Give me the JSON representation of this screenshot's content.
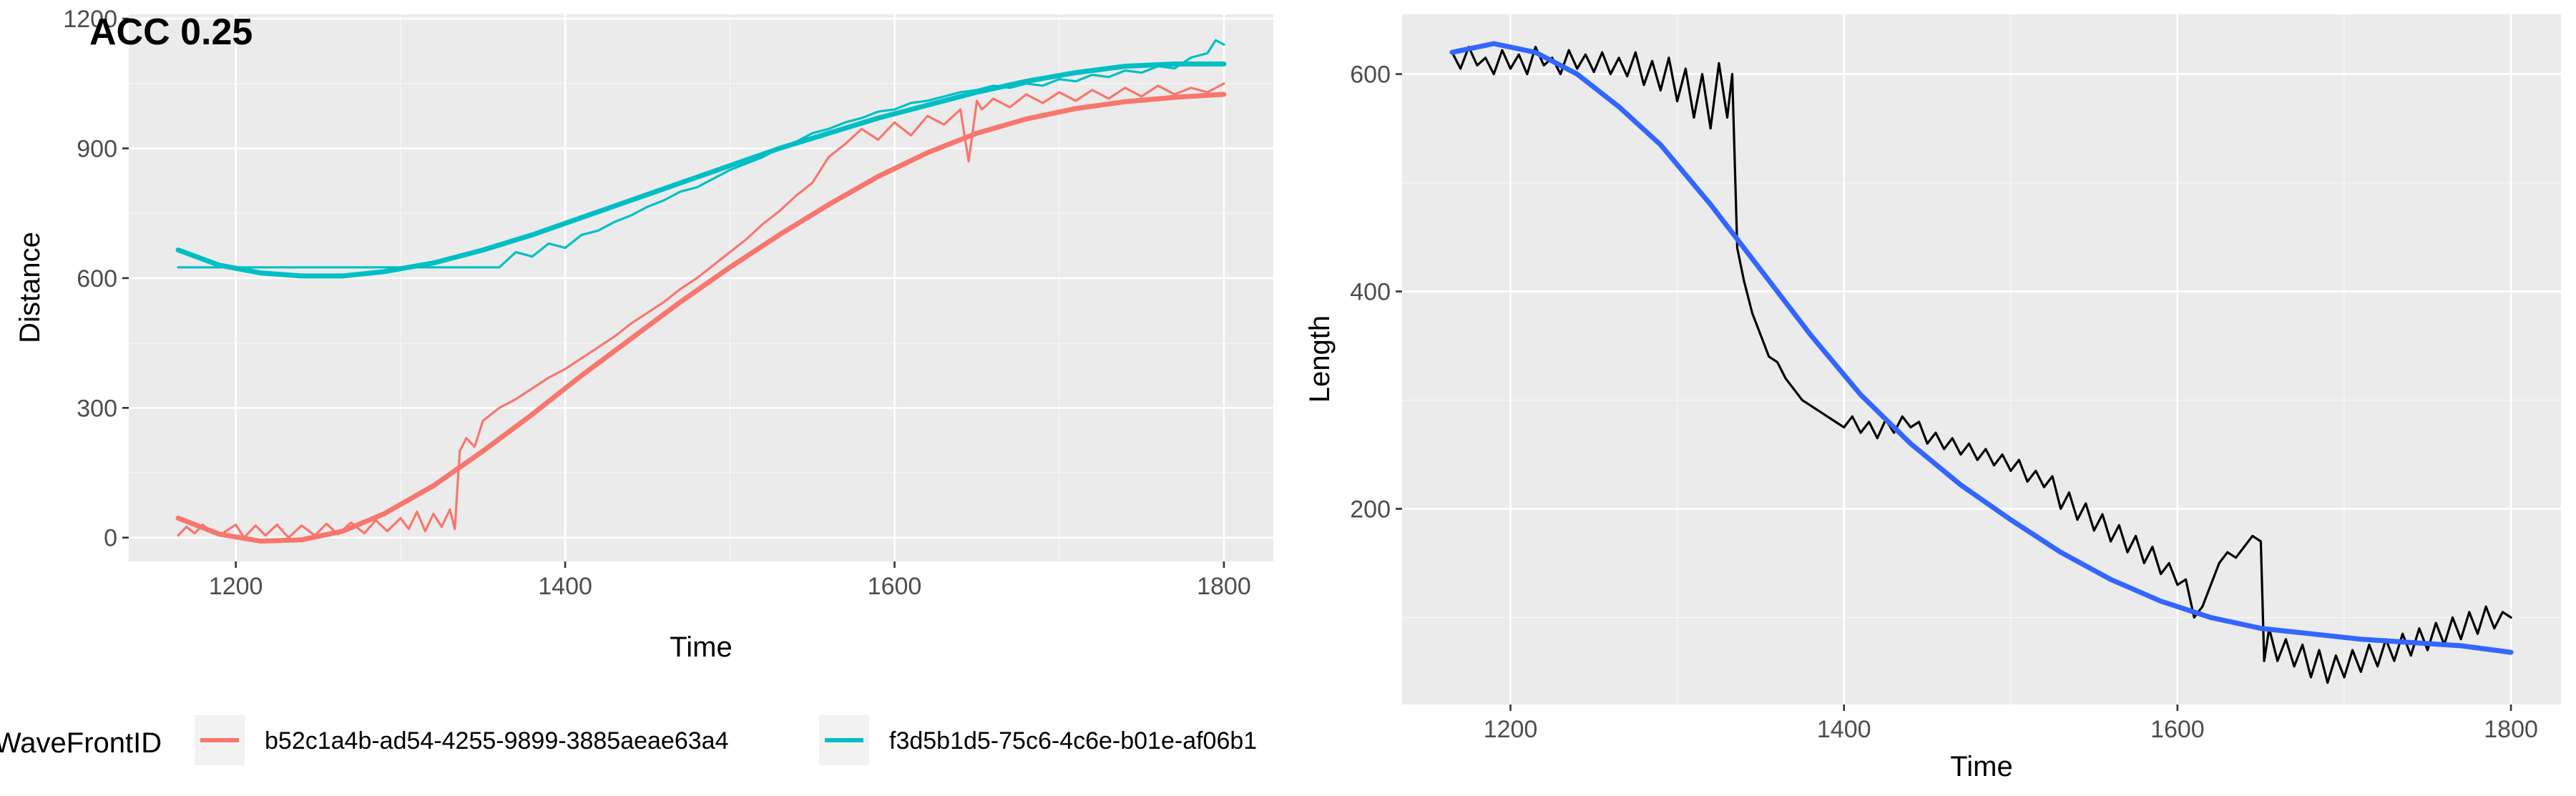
{
  "chart_data": [
    {
      "type": "line",
      "tag": "ACC 0.25",
      "title": "",
      "xlabel": "Time",
      "ylabel": "Distance",
      "xlim": [
        1135,
        1830
      ],
      "ylim": [
        -55,
        1210
      ],
      "xticks": [
        1200,
        1400,
        1600,
        1800
      ],
      "yticks": [
        0,
        300,
        600,
        900,
        1200
      ],
      "grid": true,
      "legend": {
        "title": "WaveFrontID",
        "position": "bottom",
        "entries": [
          {
            "label": "b52c1a4b-ad54-4255-9899-3885aeae63a4",
            "color": "#F8766D"
          },
          {
            "label": "f3d5b1d5-75c6-4c6e-b01e-af06b1",
            "color": "#00BFC4"
          }
        ]
      },
      "series": [
        {
          "legend_index": 0,
          "color": "#F8766D",
          "kind": "raw",
          "x": [
            1165,
            1170,
            1175,
            1180,
            1185,
            1190,
            1200,
            1205,
            1212,
            1218,
            1225,
            1232,
            1240,
            1248,
            1255,
            1262,
            1270,
            1278,
            1285,
            1292,
            1300,
            1305,
            1310,
            1315,
            1320,
            1325,
            1330,
            1333,
            1336,
            1340,
            1345,
            1350,
            1360,
            1370,
            1380,
            1390,
            1400,
            1410,
            1420,
            1430,
            1440,
            1450,
            1460,
            1470,
            1480,
            1490,
            1500,
            1510,
            1520,
            1530,
            1540,
            1550,
            1555,
            1560,
            1570,
            1580,
            1590,
            1600,
            1610,
            1620,
            1630,
            1640,
            1645,
            1650,
            1653,
            1656,
            1660,
            1670,
            1680,
            1690,
            1700,
            1710,
            1720,
            1730,
            1740,
            1750,
            1760,
            1770,
            1780,
            1790,
            1800
          ],
          "y": [
            5,
            25,
            10,
            30,
            12,
            5,
            30,
            0,
            28,
            5,
            30,
            0,
            28,
            5,
            32,
            8,
            35,
            10,
            40,
            15,
            45,
            20,
            60,
            15,
            55,
            25,
            65,
            20,
            200,
            230,
            210,
            270,
            300,
            320,
            345,
            370,
            390,
            415,
            440,
            465,
            495,
            520,
            545,
            575,
            600,
            630,
            660,
            690,
            725,
            755,
            790,
            820,
            850,
            880,
            910,
            945,
            920,
            960,
            930,
            975,
            955,
            990,
            870,
            1010,
            990,
            1000,
            1015,
            995,
            1025,
            1005,
            1030,
            1010,
            1035,
            1015,
            1040,
            1020,
            1045,
            1025,
            1040,
            1030,
            1050
          ]
        },
        {
          "legend_index": 0,
          "color": "#F8766D",
          "kind": "smooth",
          "x": [
            1165,
            1190,
            1215,
            1240,
            1265,
            1290,
            1320,
            1350,
            1380,
            1410,
            1440,
            1470,
            1500,
            1530,
            1560,
            1590,
            1620,
            1650,
            1680,
            1710,
            1740,
            1770,
            1800
          ],
          "y": [
            45,
            8,
            -8,
            -5,
            15,
            55,
            120,
            200,
            285,
            375,
            460,
            545,
            625,
            700,
            770,
            835,
            890,
            935,
            968,
            992,
            1008,
            1018,
            1025
          ]
        },
        {
          "legend_index": 1,
          "color": "#00BFC4",
          "kind": "raw",
          "x": [
            1165,
            1360,
            1370,
            1380,
            1390,
            1400,
            1410,
            1420,
            1430,
            1440,
            1450,
            1460,
            1470,
            1480,
            1490,
            1500,
            1510,
            1520,
            1530,
            1540,
            1550,
            1560,
            1570,
            1580,
            1590,
            1600,
            1610,
            1620,
            1630,
            1640,
            1650,
            1660,
            1670,
            1680,
            1690,
            1700,
            1710,
            1720,
            1730,
            1740,
            1750,
            1760,
            1770,
            1780,
            1790,
            1795,
            1800
          ],
          "y": [
            625,
            625,
            660,
            650,
            680,
            670,
            700,
            710,
            730,
            745,
            765,
            780,
            800,
            810,
            830,
            850,
            865,
            880,
            900,
            915,
            935,
            945,
            960,
            970,
            985,
            990,
            1005,
            1010,
            1020,
            1030,
            1035,
            1045,
            1040,
            1050,
            1045,
            1060,
            1055,
            1070,
            1065,
            1080,
            1075,
            1090,
            1085,
            1110,
            1120,
            1150,
            1140
          ]
        },
        {
          "legend_index": 1,
          "color": "#00BFC4",
          "kind": "smooth",
          "x": [
            1165,
            1190,
            1215,
            1240,
            1265,
            1290,
            1320,
            1350,
            1380,
            1410,
            1440,
            1470,
            1500,
            1530,
            1560,
            1590,
            1620,
            1650,
            1680,
            1710,
            1740,
            1770,
            1800
          ],
          "y": [
            665,
            630,
            612,
            605,
            605,
            615,
            635,
            665,
            700,
            740,
            780,
            820,
            860,
            900,
            935,
            970,
            1000,
            1030,
            1055,
            1075,
            1090,
            1095,
            1095
          ]
        }
      ]
    },
    {
      "type": "line",
      "title": "",
      "xlabel": "Time",
      "ylabel": "Length",
      "xlim": [
        1135,
        1830
      ],
      "ylim": [
        20,
        655
      ],
      "xticks": [
        1200,
        1400,
        1600,
        1800
      ],
      "yticks": [
        200,
        400,
        600
      ],
      "grid": true,
      "series": [
        {
          "color": "#000000",
          "kind": "raw",
          "x": [
            1165,
            1170,
            1175,
            1180,
            1185,
            1190,
            1195,
            1200,
            1205,
            1210,
            1215,
            1220,
            1225,
            1230,
            1235,
            1240,
            1245,
            1250,
            1255,
            1260,
            1265,
            1270,
            1275,
            1280,
            1285,
            1290,
            1295,
            1300,
            1305,
            1310,
            1315,
            1320,
            1325,
            1330,
            1333,
            1336,
            1340,
            1345,
            1350,
            1355,
            1360,
            1365,
            1370,
            1375,
            1380,
            1385,
            1390,
            1395,
            1400,
            1405,
            1410,
            1415,
            1420,
            1425,
            1430,
            1435,
            1440,
            1445,
            1450,
            1455,
            1460,
            1465,
            1470,
            1475,
            1480,
            1485,
            1490,
            1495,
            1500,
            1505,
            1510,
            1515,
            1520,
            1525,
            1530,
            1535,
            1540,
            1545,
            1550,
            1555,
            1560,
            1565,
            1570,
            1575,
            1580,
            1585,
            1590,
            1595,
            1600,
            1605,
            1610,
            1615,
            1620,
            1625,
            1630,
            1635,
            1640,
            1645,
            1650,
            1652,
            1655,
            1660,
            1665,
            1670,
            1675,
            1680,
            1685,
            1690,
            1695,
            1700,
            1705,
            1710,
            1715,
            1720,
            1725,
            1730,
            1735,
            1740,
            1745,
            1750,
            1755,
            1760,
            1765,
            1770,
            1775,
            1780,
            1785,
            1790,
            1795,
            1800
          ],
          "y": [
            620,
            605,
            625,
            608,
            615,
            600,
            622,
            605,
            618,
            600,
            625,
            608,
            615,
            600,
            622,
            605,
            618,
            602,
            620,
            600,
            615,
            598,
            620,
            590,
            612,
            585,
            615,
            575,
            605,
            560,
            600,
            550,
            610,
            560,
            600,
            440,
            410,
            380,
            360,
            340,
            335,
            320,
            310,
            300,
            295,
            290,
            285,
            280,
            275,
            285,
            270,
            280,
            265,
            282,
            270,
            285,
            275,
            280,
            260,
            270,
            255,
            265,
            250,
            260,
            245,
            255,
            240,
            250,
            235,
            245,
            225,
            235,
            220,
            230,
            200,
            215,
            190,
            205,
            180,
            195,
            170,
            185,
            160,
            175,
            150,
            165,
            140,
            150,
            130,
            135,
            100,
            110,
            130,
            150,
            160,
            155,
            165,
            175,
            170,
            60,
            90,
            60,
            80,
            55,
            75,
            45,
            70,
            40,
            65,
            45,
            70,
            50,
            75,
            55,
            80,
            60,
            85,
            65,
            90,
            70,
            95,
            75,
            100,
            80,
            105,
            85,
            110,
            90,
            105,
            100
          ],
          "note": ""
        },
        {
          "color": "#3366FF",
          "kind": "smooth",
          "x": [
            1165,
            1190,
            1215,
            1240,
            1265,
            1290,
            1320,
            1350,
            1380,
            1410,
            1440,
            1470,
            1500,
            1530,
            1560,
            1590,
            1620,
            1650,
            1680,
            1710,
            1740,
            1770,
            1800
          ],
          "y": [
            620,
            628,
            620,
            600,
            570,
            535,
            480,
            420,
            360,
            305,
            260,
            222,
            190,
            160,
            135,
            115,
            100,
            90,
            85,
            80,
            77,
            74,
            68
          ]
        }
      ]
    }
  ]
}
